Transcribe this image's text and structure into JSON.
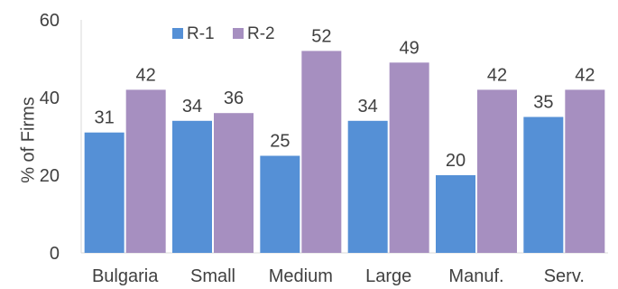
{
  "chart_data": {
    "type": "bar",
    "categories": [
      "Bulgaria",
      "Small",
      "Medium",
      "Large",
      "Manuf.",
      "Serv."
    ],
    "series": [
      {
        "name": "R-1",
        "values": [
          31,
          34,
          25,
          34,
          20,
          35
        ],
        "color": "#5590d6"
      },
      {
        "name": "R-2",
        "values": [
          42,
          36,
          52,
          49,
          42,
          42
        ],
        "color": "#a68fc0"
      }
    ],
    "ylabel": "% of Firms",
    "ylim": [
      0,
      60
    ],
    "yticks": [
      0,
      20,
      40,
      60
    ],
    "grid": false,
    "legend_position": "top-left"
  }
}
